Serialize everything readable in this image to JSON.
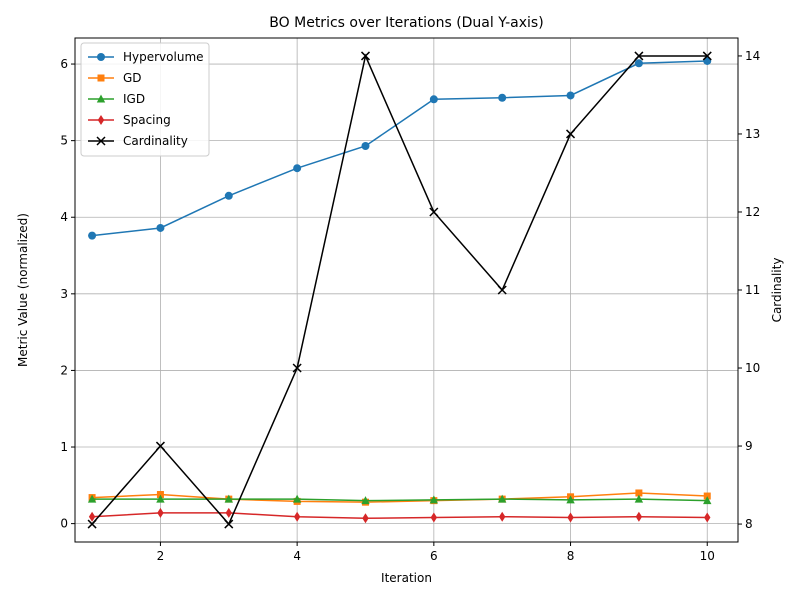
{
  "chart_data": {
    "type": "line",
    "title": "BO Metrics over Iterations (Dual Y-axis)",
    "xlabel": "Iteration",
    "ylabel_left": "Metric Value (normalized)",
    "ylabel_right": "Cardinality",
    "x": [
      1,
      2,
      3,
      4,
      5,
      6,
      7,
      8,
      9,
      10
    ],
    "xlim": [
      0.75,
      10.45
    ],
    "ylim_left": [
      -0.24,
      6.34
    ],
    "ylim_right": [
      7.77,
      14.23
    ],
    "xticks": [
      2,
      4,
      6,
      8,
      10
    ],
    "yticks_left": [
      0,
      1,
      2,
      3,
      4,
      5,
      6
    ],
    "yticks_right": [
      8,
      9,
      10,
      11,
      12,
      13,
      14
    ],
    "grid": true,
    "legend_position": "top-left",
    "series": [
      {
        "name": "Hypervolume",
        "axis": "left",
        "color": "#1f77b4",
        "marker": "circle",
        "values": [
          3.76,
          3.86,
          4.28,
          4.64,
          4.93,
          5.54,
          5.56,
          5.59,
          6.01,
          6.04
        ]
      },
      {
        "name": "GD",
        "axis": "left",
        "color": "#ff7f0e",
        "marker": "square",
        "values": [
          0.34,
          0.38,
          0.32,
          0.29,
          0.28,
          0.3,
          0.32,
          0.35,
          0.4,
          0.36
        ]
      },
      {
        "name": "IGD",
        "axis": "left",
        "color": "#2ca02c",
        "marker": "triangle",
        "values": [
          0.32,
          0.32,
          0.32,
          0.32,
          0.3,
          0.31,
          0.32,
          0.31,
          0.32,
          0.3
        ]
      },
      {
        "name": "Spacing",
        "axis": "left",
        "color": "#d62728",
        "marker": "diamond",
        "values": [
          0.09,
          0.14,
          0.14,
          0.09,
          0.07,
          0.08,
          0.09,
          0.08,
          0.09,
          0.08
        ]
      },
      {
        "name": "Cardinality",
        "axis": "right",
        "color": "#000000",
        "marker": "x",
        "values": [
          8,
          9,
          8,
          10,
          14,
          12,
          11,
          13,
          14,
          14
        ]
      }
    ]
  }
}
